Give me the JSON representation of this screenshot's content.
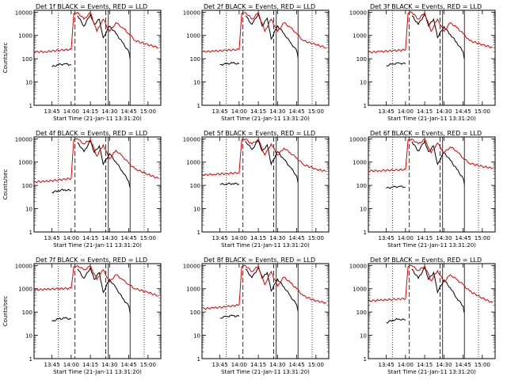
{
  "chart_data": [
    {
      "type": "line",
      "title": "Det 1f BLACK = Events, RED = LLD",
      "xlabel": "Start Time (21-Jan-11 13:31:20)",
      "ylabel": "Counts/sec",
      "xlim": [
        "13:31",
        "15:10"
      ],
      "ylim": [
        1,
        12000
      ],
      "yscale": "log",
      "x_ticks": [
        "13:45",
        "14:00",
        "14:15",
        "14:30",
        "14:45",
        "15:00"
      ],
      "y_ticks": [
        "1",
        "10",
        "100",
        "1000",
        "10000"
      ],
      "series": [
        {
          "name": "BLACK",
          "color": "#000000",
          "x": [
            "13:45",
            "13:50",
            "13:55",
            "14:00",
            "14:01",
            "14:05",
            "14:10",
            "14:15",
            "14:18",
            "14:22",
            "14:25",
            "14:30",
            "14:35",
            "14:40",
            "14:45",
            "14:46"
          ],
          "values": [
            45,
            55,
            60,
            55,
            null,
            7000,
            2500,
            8000,
            3000,
            5000,
            800,
            2500,
            1200,
            500,
            200,
            100
          ]
        },
        {
          "name": "RED",
          "color": "#e00000",
          "x": [
            "13:31",
            "13:40",
            "13:50",
            "14:00",
            "14:02",
            "14:05",
            "14:10",
            "14:15",
            "14:20",
            "14:25",
            "14:30",
            "14:35",
            "14:40",
            "14:45",
            "14:50",
            "15:00",
            "15:08"
          ],
          "values": [
            200,
            200,
            230,
            250,
            9000,
            9800,
            5000,
            9500,
            1500,
            5000,
            1500,
            3500,
            2200,
            1200,
            600,
            400,
            300
          ]
        }
      ]
    },
    {
      "type": "line",
      "title": "Det 2f BLACK = Events, RED = LLD",
      "xlabel": "Start Time (21-Jan-11 13:31:20)",
      "ylabel": "",
      "xlim": [
        "13:31",
        "15:10"
      ],
      "ylim": [
        1,
        12000
      ],
      "yscale": "log",
      "x_ticks": [
        "13:45",
        "14:00",
        "14:15",
        "14:30",
        "14:45",
        "15:00"
      ],
      "y_ticks": [
        "1",
        "10",
        "100",
        "1000",
        "10000"
      ],
      "series": [
        {
          "name": "BLACK",
          "color": "#000000",
          "x": [
            "13:45",
            "13:50",
            "13:55",
            "14:00",
            "14:01",
            "14:05",
            "14:10",
            "14:15",
            "14:18",
            "14:22",
            "14:25",
            "14:30",
            "14:35",
            "14:40",
            "14:45",
            "14:46"
          ],
          "values": [
            55,
            60,
            65,
            60,
            null,
            7000,
            3000,
            8500,
            2500,
            5500,
            700,
            2600,
            1200,
            500,
            220,
            110
          ]
        },
        {
          "name": "RED",
          "color": "#e00000",
          "x": [
            "13:31",
            "13:40",
            "13:50",
            "14:00",
            "14:02",
            "14:05",
            "14:10",
            "14:15",
            "14:20",
            "14:25",
            "14:30",
            "14:35",
            "14:40",
            "14:45",
            "14:50",
            "15:00",
            "15:08"
          ],
          "values": [
            200,
            210,
            230,
            250,
            9000,
            9800,
            5000,
            9500,
            1500,
            5000,
            1500,
            3500,
            2200,
            1200,
            600,
            400,
            300
          ]
        }
      ]
    },
    {
      "type": "line",
      "title": "Det 3f BLACK = Events, RED = LLD",
      "xlabel": "Start Time (21-Jan-11 13:31:20)",
      "ylabel": "",
      "xlim": [
        "13:31",
        "15:10"
      ],
      "ylim": [
        1,
        12000
      ],
      "yscale": "log",
      "x_ticks": [
        "13:45",
        "14:00",
        "14:15",
        "14:30",
        "14:45",
        "15:00"
      ],
      "y_ticks": [
        "1",
        "10",
        "100",
        "1000",
        "10000"
      ],
      "series": [
        {
          "name": "BLACK",
          "color": "#000000",
          "x": [
            "13:45",
            "13:50",
            "13:55",
            "14:00",
            "14:01",
            "14:05",
            "14:10",
            "14:15",
            "14:18",
            "14:22",
            "14:25",
            "14:30",
            "14:35",
            "14:40",
            "14:45",
            "14:46"
          ],
          "values": [
            50,
            60,
            65,
            60,
            null,
            7000,
            3000,
            8000,
            2500,
            5000,
            800,
            2400,
            1100,
            500,
            200,
            100
          ]
        },
        {
          "name": "RED",
          "color": "#e00000",
          "x": [
            "13:31",
            "13:40",
            "13:50",
            "14:00",
            "14:02",
            "14:05",
            "14:10",
            "14:15",
            "14:20",
            "14:25",
            "14:30",
            "14:35",
            "14:40",
            "14:45",
            "14:50",
            "15:00",
            "15:08"
          ],
          "values": [
            190,
            200,
            220,
            240,
            9000,
            9800,
            5000,
            9500,
            1500,
            5000,
            1500,
            3500,
            2200,
            1200,
            600,
            400,
            300
          ]
        }
      ]
    },
    {
      "type": "line",
      "title": "Det 4f BLACK = Events, RED = LLD",
      "xlabel": "Start Time (21-Jan-11 13:31:20)",
      "ylabel": "Counts/sec",
      "xlim": [
        "13:31",
        "15:10"
      ],
      "ylim": [
        1,
        12000
      ],
      "yscale": "log",
      "x_ticks": [
        "13:45",
        "14:00",
        "14:15",
        "14:30",
        "14:45",
        "15:00"
      ],
      "y_ticks": [
        "1",
        "10",
        "100",
        "1000",
        "10000"
      ],
      "series": [
        {
          "name": "BLACK",
          "color": "#000000",
          "x": [
            "13:45",
            "13:50",
            "13:55",
            "14:00",
            "14:01",
            "14:05",
            "14:10",
            "14:15",
            "14:18",
            "14:22",
            "14:25",
            "14:30",
            "14:35",
            "14:40",
            "14:45",
            "14:46"
          ],
          "values": [
            50,
            60,
            65,
            60,
            null,
            7000,
            2800,
            8000,
            2600,
            5000,
            800,
            2300,
            1000,
            400,
            150,
            80
          ]
        },
        {
          "name": "RED",
          "color": "#e00000",
          "x": [
            "13:31",
            "13:40",
            "13:50",
            "14:00",
            "14:02",
            "14:05",
            "14:10",
            "14:15",
            "14:20",
            "14:25",
            "14:30",
            "14:35",
            "14:40",
            "14:45",
            "14:50",
            "15:00",
            "15:08"
          ],
          "values": [
            140,
            150,
            170,
            200,
            9000,
            9800,
            6000,
            9500,
            1800,
            5500,
            1400,
            3200,
            1800,
            900,
            500,
            300,
            200
          ]
        }
      ]
    },
    {
      "type": "line",
      "title": "Det 5f BLACK = Events, RED = LLD",
      "xlabel": "Start Time (21-Jan-11 13:31:20)",
      "ylabel": "",
      "xlim": [
        "13:31",
        "15:10"
      ],
      "ylim": [
        1,
        12000
      ],
      "yscale": "log",
      "x_ticks": [
        "13:45",
        "14:00",
        "14:15",
        "14:30",
        "14:45",
        "15:00"
      ],
      "y_ticks": [
        "1",
        "10",
        "100",
        "1000",
        "10000"
      ],
      "series": [
        {
          "name": "BLACK",
          "color": "#000000",
          "x": [
            "13:45",
            "13:50",
            "13:55",
            "14:00",
            "14:01",
            "14:05",
            "14:10",
            "14:15",
            "14:18",
            "14:22",
            "14:25",
            "14:30",
            "14:35",
            "14:40",
            "14:45",
            "14:46"
          ],
          "values": [
            110,
            115,
            120,
            115,
            null,
            8000,
            3500,
            8500,
            3000,
            5500,
            800,
            2800,
            1300,
            600,
            250,
            130
          ]
        },
        {
          "name": "RED",
          "color": "#e00000",
          "x": [
            "13:31",
            "13:40",
            "13:50",
            "14:00",
            "14:02",
            "14:05",
            "14:10",
            "14:15",
            "14:20",
            "14:25",
            "14:30",
            "14:35",
            "14:40",
            "14:45",
            "14:50",
            "15:00",
            "15:08"
          ],
          "values": [
            280,
            300,
            320,
            350,
            9000,
            9800,
            6000,
            9500,
            2000,
            6000,
            2000,
            4000,
            2500,
            1500,
            800,
            500,
            400
          ]
        }
      ]
    },
    {
      "type": "line",
      "title": "Det 6f BLACK = Events, RED = LLD",
      "xlabel": "Start Time (21-Jan-11 13:31:20)",
      "ylabel": "",
      "xlim": [
        "13:31",
        "15:10"
      ],
      "ylim": [
        1,
        12000
      ],
      "yscale": "log",
      "x_ticks": [
        "13:45",
        "14:00",
        "14:15",
        "14:30",
        "14:45",
        "15:00"
      ],
      "y_ticks": [
        "1",
        "10",
        "100",
        "1000",
        "10000"
      ],
      "series": [
        {
          "name": "BLACK",
          "color": "#000000",
          "x": [
            "13:45",
            "13:50",
            "13:55",
            "14:00",
            "14:01",
            "14:05",
            "14:10",
            "14:15",
            "14:18",
            "14:22",
            "14:25",
            "14:30",
            "14:35",
            "14:40",
            "14:45",
            "14:46"
          ],
          "values": [
            75,
            85,
            90,
            85,
            null,
            7500,
            3000,
            8000,
            2800,
            5000,
            800,
            2600,
            1200,
            500,
            200,
            110
          ]
        },
        {
          "name": "RED",
          "color": "#e00000",
          "x": [
            "13:31",
            "13:40",
            "13:50",
            "14:00",
            "14:02",
            "14:05",
            "14:10",
            "14:15",
            "14:20",
            "14:25",
            "14:30",
            "14:35",
            "14:40",
            "14:45",
            "14:50",
            "15:00",
            "15:08"
          ],
          "values": [
            420,
            430,
            450,
            480,
            9000,
            9800,
            6000,
            9500,
            2500,
            6500,
            2500,
            4500,
            3000,
            1500,
            900,
            650,
            550
          ]
        }
      ]
    },
    {
      "type": "line",
      "title": "Det 7f BLACK = Events, RED = LLD",
      "xlabel": "Start Time (21-Jan-11 13:31:20)",
      "ylabel": "Counts/sec",
      "xlim": [
        "13:31",
        "15:10"
      ],
      "ylim": [
        1,
        12000
      ],
      "yscale": "log",
      "x_ticks": [
        "13:45",
        "14:00",
        "14:15",
        "14:30",
        "14:45",
        "15:00"
      ],
      "y_ticks": [
        "1",
        "10",
        "100",
        "1000",
        "10000"
      ],
      "series": [
        {
          "name": "BLACK",
          "color": "#000000",
          "x": [
            "13:45",
            "13:50",
            "13:55",
            "14:00",
            "14:01",
            "14:05",
            "14:10",
            "14:15",
            "14:18",
            "14:22",
            "14:25",
            "14:30",
            "14:35",
            "14:40",
            "14:45",
            "14:46"
          ],
          "values": [
            40,
            50,
            55,
            50,
            null,
            7000,
            2800,
            8000,
            2500,
            5000,
            700,
            2500,
            1100,
            400,
            180,
            90
          ]
        },
        {
          "name": "RED",
          "color": "#e00000",
          "x": [
            "13:31",
            "13:40",
            "13:50",
            "14:00",
            "14:02",
            "14:05",
            "14:10",
            "14:15",
            "14:20",
            "14:25",
            "14:30",
            "14:35",
            "14:40",
            "14:45",
            "14:50",
            "15:00",
            "15:08"
          ],
          "values": [
            900,
            950,
            1000,
            1050,
            9000,
            9800,
            6500,
            9500,
            2500,
            6500,
            2000,
            4000,
            2500,
            1500,
            1000,
            700,
            500
          ]
        }
      ]
    },
    {
      "type": "line",
      "title": "Det 8f BLACK = Events, RED = LLD",
      "xlabel": "Start Time (21-Jan-11 13:31:20)",
      "ylabel": "",
      "xlim": [
        "13:31",
        "15:10"
      ],
      "ylim": [
        1,
        12000
      ],
      "yscale": "log",
      "x_ticks": [
        "13:45",
        "14:00",
        "14:15",
        "14:30",
        "14:45",
        "15:00"
      ],
      "y_ticks": [
        "1",
        "10",
        "100",
        "1000",
        "10000"
      ],
      "series": [
        {
          "name": "BLACK",
          "color": "#000000",
          "x": [
            "13:45",
            "13:50",
            "13:55",
            "14:00",
            "14:01",
            "14:05",
            "14:10",
            "14:15",
            "14:18",
            "14:22",
            "14:25",
            "14:30",
            "14:35",
            "14:40",
            "14:45",
            "14:46"
          ],
          "values": [
            55,
            65,
            70,
            65,
            null,
            7000,
            3000,
            8000,
            2800,
            5000,
            800,
            2600,
            1200,
            500,
            200,
            110
          ]
        },
        {
          "name": "RED",
          "color": "#e00000",
          "x": [
            "13:31",
            "13:40",
            "13:50",
            "14:00",
            "14:02",
            "14:05",
            "14:10",
            "14:15",
            "14:20",
            "14:25",
            "14:30",
            "14:35",
            "14:40",
            "14:45",
            "14:50",
            "15:00",
            "15:08"
          ],
          "values": [
            140,
            150,
            170,
            200,
            9000,
            9800,
            5500,
            9500,
            1500,
            5500,
            1300,
            3200,
            1800,
            1000,
            500,
            300,
            250
          ]
        }
      ]
    },
    {
      "type": "line",
      "title": "Det 9f BLACK = Events, RED = LLD",
      "xlabel": "Start Time (21-Jan-11 13:31:20)",
      "ylabel": "",
      "xlim": [
        "13:31",
        "15:10"
      ],
      "ylim": [
        1,
        12000
      ],
      "yscale": "log",
      "x_ticks": [
        "13:45",
        "14:00",
        "14:15",
        "14:30",
        "14:45",
        "15:00"
      ],
      "y_ticks": [
        "1",
        "10",
        "100",
        "1000",
        "10000"
      ],
      "series": [
        {
          "name": "BLACK",
          "color": "#000000",
          "x": [
            "13:45",
            "13:50",
            "13:55",
            "14:00",
            "14:01",
            "14:05",
            "14:10",
            "14:15",
            "14:18",
            "14:22",
            "14:25",
            "14:30",
            "14:35",
            "14:40",
            "14:45",
            "14:46"
          ],
          "values": [
            35,
            45,
            50,
            45,
            null,
            7000,
            2800,
            8000,
            2500,
            5000,
            700,
            2400,
            1100,
            400,
            180,
            90
          ]
        },
        {
          "name": "RED",
          "color": "#e00000",
          "x": [
            "13:31",
            "13:40",
            "13:50",
            "14:00",
            "14:02",
            "14:05",
            "14:10",
            "14:15",
            "14:20",
            "14:25",
            "14:30",
            "14:35",
            "14:40",
            "14:45",
            "14:50",
            "15:00",
            "15:08"
          ],
          "values": [
            300,
            320,
            350,
            380,
            9000,
            9800,
            6000,
            9500,
            2200,
            6000,
            2000,
            4000,
            2500,
            1500,
            800,
            400,
            250
          ]
        }
      ]
    }
  ]
}
